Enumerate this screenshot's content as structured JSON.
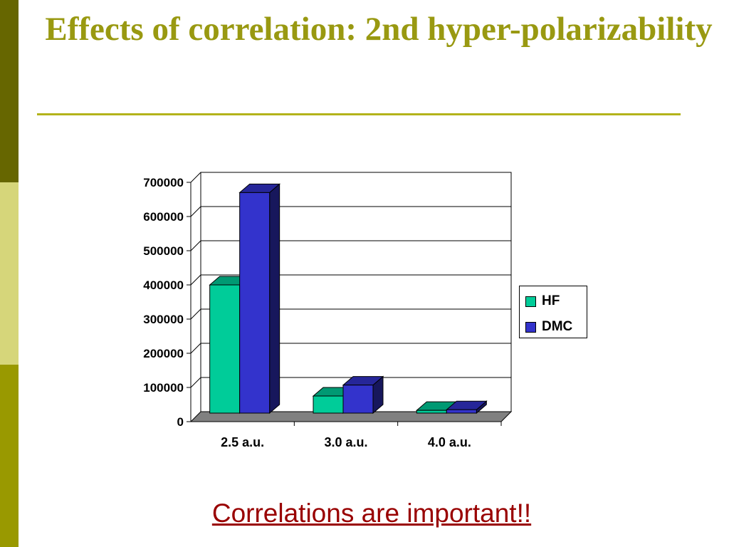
{
  "slide": {
    "title": "Effects of correlation:  2nd hyper-polarizability",
    "footer_text": "Correlations are important!!"
  },
  "theme": {
    "title_color": "#999911",
    "hf_color": "#00cc99",
    "dmc_color": "#3333cc",
    "footer_color": "#990000"
  },
  "chart_data": {
    "type": "bar",
    "categories": [
      "2.5 a.u.",
      "3.0 a.u.",
      "4.0 a.u."
    ],
    "series": [
      {
        "name": "HF",
        "values": [
          375000,
          50000,
          8000
        ]
      },
      {
        "name": "DMC",
        "values": [
          645000,
          82000,
          10000
        ]
      }
    ],
    "yticks": [
      "0",
      "100000",
      "200000",
      "300000",
      "400000",
      "500000",
      "600000",
      "700000"
    ],
    "ylim": [
      0,
      700000
    ],
    "grid": true,
    "legend": "right"
  }
}
